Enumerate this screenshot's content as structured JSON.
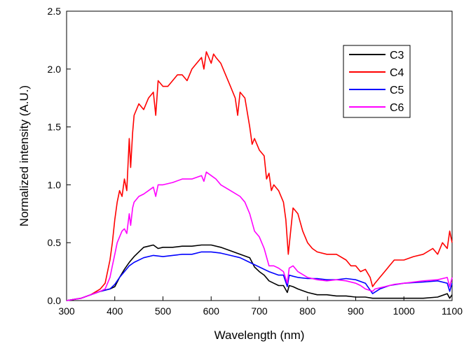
{
  "chart_data": {
    "type": "line",
    "title": "",
    "xlabel": "Wavelength (nm)",
    "ylabel": "Normalized intensity (A.U.)",
    "xlim": [
      300,
      1100
    ],
    "ylim": [
      0,
      2.5
    ],
    "xticks": [
      300,
      400,
      500,
      600,
      700,
      800,
      900,
      1000,
      1100
    ],
    "yticks": [
      0.0,
      0.5,
      1.0,
      1.5,
      2.0,
      2.5
    ],
    "xtick_labels": [
      "300",
      "400",
      "500",
      "600",
      "700",
      "800",
      "900",
      "1000",
      "1100"
    ],
    "ytick_labels": [
      "0.0",
      "0.5",
      "1.0",
      "1.5",
      "2.0",
      "2.5"
    ],
    "grid": false,
    "legend_position": "top-right",
    "series": [
      {
        "name": "C3",
        "color": "#000000",
        "x": [
          300,
          330,
          350,
          370,
          390,
          400,
          410,
          420,
          430,
          440,
          450,
          460,
          470,
          480,
          490,
          500,
          520,
          540,
          560,
          580,
          600,
          620,
          640,
          660,
          680,
          690,
          700,
          710,
          720,
          730,
          740,
          750,
          758,
          762,
          770,
          780,
          800,
          820,
          840,
          860,
          880,
          900,
          920,
          935,
          950,
          970,
          1000,
          1040,
          1070,
          1090,
          1095,
          1100
        ],
        "y": [
          0.0,
          0.02,
          0.05,
          0.08,
          0.1,
          0.12,
          0.2,
          0.27,
          0.33,
          0.38,
          0.42,
          0.46,
          0.47,
          0.48,
          0.45,
          0.46,
          0.46,
          0.47,
          0.47,
          0.48,
          0.48,
          0.46,
          0.43,
          0.4,
          0.37,
          0.29,
          0.25,
          0.22,
          0.17,
          0.15,
          0.13,
          0.13,
          0.07,
          0.13,
          0.12,
          0.1,
          0.07,
          0.05,
          0.05,
          0.04,
          0.04,
          0.03,
          0.03,
          0.02,
          0.02,
          0.02,
          0.02,
          0.02,
          0.03,
          0.06,
          0.02,
          0.05
        ]
      },
      {
        "name": "C4",
        "color": "#ff0000",
        "x": [
          300,
          330,
          350,
          370,
          380,
          390,
          395,
          400,
          405,
          410,
          415,
          420,
          425,
          430,
          433,
          437,
          440,
          450,
          460,
          470,
          480,
          485,
          490,
          500,
          510,
          520,
          530,
          540,
          550,
          560,
          570,
          580,
          585,
          590,
          600,
          605,
          610,
          620,
          630,
          640,
          650,
          655,
          660,
          670,
          680,
          685,
          690,
          700,
          710,
          715,
          720,
          725,
          730,
          740,
          750,
          755,
          760,
          765,
          770,
          780,
          790,
          800,
          810,
          820,
          840,
          860,
          880,
          890,
          900,
          910,
          920,
          930,
          935,
          940,
          950,
          960,
          970,
          980,
          1000,
          1020,
          1040,
          1060,
          1070,
          1080,
          1090,
          1095,
          1100
        ],
        "y": [
          0.0,
          0.02,
          0.05,
          0.1,
          0.15,
          0.35,
          0.5,
          0.7,
          0.85,
          0.95,
          0.9,
          1.05,
          0.95,
          1.4,
          1.15,
          1.45,
          1.6,
          1.7,
          1.65,
          1.75,
          1.8,
          1.6,
          1.9,
          1.85,
          1.85,
          1.9,
          1.95,
          1.95,
          1.9,
          2.0,
          2.05,
          2.1,
          2.0,
          2.15,
          2.05,
          2.13,
          2.1,
          2.05,
          1.95,
          1.85,
          1.75,
          1.6,
          1.8,
          1.75,
          1.5,
          1.35,
          1.4,
          1.3,
          1.25,
          1.05,
          1.1,
          0.95,
          1.0,
          0.95,
          0.85,
          0.7,
          0.4,
          0.6,
          0.8,
          0.75,
          0.6,
          0.5,
          0.45,
          0.42,
          0.4,
          0.4,
          0.35,
          0.3,
          0.3,
          0.25,
          0.27,
          0.2,
          0.12,
          0.15,
          0.2,
          0.25,
          0.3,
          0.35,
          0.35,
          0.38,
          0.4,
          0.45,
          0.4,
          0.5,
          0.45,
          0.6,
          0.5
        ]
      },
      {
        "name": "C5",
        "color": "#0000ff",
        "x": [
          300,
          330,
          350,
          370,
          390,
          400,
          410,
          420,
          430,
          440,
          460,
          480,
          500,
          520,
          540,
          560,
          580,
          600,
          620,
          640,
          660,
          680,
          700,
          720,
          740,
          750,
          758,
          762,
          770,
          780,
          800,
          820,
          840,
          860,
          880,
          900,
          920,
          935,
          950,
          970,
          1000,
          1040,
          1070,
          1090,
          1095,
          1100
        ],
        "y": [
          0.0,
          0.02,
          0.05,
          0.08,
          0.1,
          0.14,
          0.2,
          0.25,
          0.3,
          0.33,
          0.37,
          0.39,
          0.38,
          0.39,
          0.4,
          0.4,
          0.42,
          0.42,
          0.41,
          0.39,
          0.37,
          0.33,
          0.29,
          0.25,
          0.22,
          0.22,
          0.12,
          0.22,
          0.21,
          0.2,
          0.19,
          0.19,
          0.18,
          0.18,
          0.19,
          0.18,
          0.15,
          0.06,
          0.1,
          0.13,
          0.15,
          0.16,
          0.17,
          0.15,
          0.08,
          0.15
        ]
      },
      {
        "name": "C6",
        "color": "#ff00ff",
        "x": [
          300,
          330,
          350,
          370,
          380,
          390,
          395,
          400,
          405,
          410,
          415,
          420,
          425,
          430,
          433,
          437,
          440,
          450,
          460,
          470,
          480,
          485,
          490,
          500,
          520,
          540,
          560,
          580,
          585,
          590,
          600,
          610,
          620,
          640,
          660,
          670,
          680,
          690,
          700,
          710,
          720,
          730,
          740,
          750,
          758,
          762,
          770,
          780,
          800,
          820,
          840,
          860,
          880,
          900,
          910,
          920,
          935,
          940,
          960,
          980,
          1000,
          1040,
          1070,
          1090,
          1095,
          1100
        ],
        "y": [
          0.0,
          0.02,
          0.05,
          0.08,
          0.1,
          0.2,
          0.3,
          0.4,
          0.5,
          0.55,
          0.6,
          0.62,
          0.58,
          0.75,
          0.65,
          0.8,
          0.85,
          0.9,
          0.92,
          0.95,
          0.98,
          0.9,
          1.0,
          1.0,
          1.02,
          1.05,
          1.05,
          1.08,
          1.03,
          1.11,
          1.08,
          1.05,
          1.0,
          0.95,
          0.9,
          0.85,
          0.75,
          0.6,
          0.55,
          0.45,
          0.3,
          0.3,
          0.28,
          0.25,
          0.15,
          0.28,
          0.3,
          0.25,
          0.2,
          0.18,
          0.17,
          0.18,
          0.17,
          0.15,
          0.13,
          0.1,
          0.08,
          0.1,
          0.12,
          0.14,
          0.15,
          0.17,
          0.18,
          0.2,
          0.12,
          0.2
        ]
      }
    ]
  }
}
